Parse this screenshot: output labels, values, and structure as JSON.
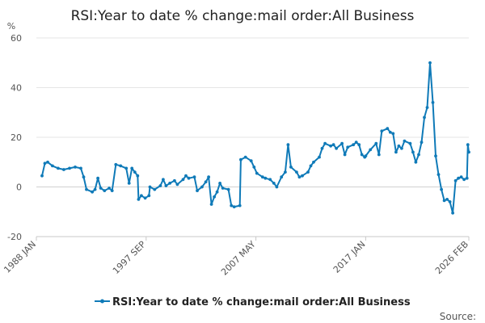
{
  "chart_data": {
    "type": "line",
    "title": "RSI:Year to date % change:mail order:All Business",
    "ylabel": "%",
    "xlabel": "",
    "ylim": [
      -20,
      60
    ],
    "yticks": [
      -20,
      0,
      20,
      40,
      60
    ],
    "xlim": [
      "1988-01",
      "2026-02"
    ],
    "xticks": [
      "1988 JAN",
      "1997 SEP",
      "2007 MAY",
      "2017 JAN",
      "2026 FEB"
    ],
    "grid": true,
    "legend_position": "bottom",
    "source_label": "Source:",
    "series": [
      {
        "name": "RSI:Year to date % change:mail order:All Business",
        "color": "#0f7ab8",
        "points": [
          [
            "1988-07",
            4.5
          ],
          [
            "1988-10",
            9.5
          ],
          [
            "1989-01",
            10.0
          ],
          [
            "1989-06",
            8.5
          ],
          [
            "1989-12",
            7.5
          ],
          [
            "1990-06",
            7.0
          ],
          [
            "1990-12",
            7.5
          ],
          [
            "1991-06",
            8.0
          ],
          [
            "1991-12",
            7.5
          ],
          [
            "1992-03",
            4.0
          ],
          [
            "1992-06",
            -1.0
          ],
          [
            "1992-12",
            -2.0
          ],
          [
            "1993-03",
            -1.0
          ],
          [
            "1993-06",
            3.5
          ],
          [
            "1993-09",
            -0.5
          ],
          [
            "1994-01",
            -1.5
          ],
          [
            "1994-06",
            -0.5
          ],
          [
            "1994-09",
            -1.5
          ],
          [
            "1995-01",
            9.0
          ],
          [
            "1995-06",
            8.5
          ],
          [
            "1995-12",
            7.5
          ],
          [
            "1996-03",
            1.5
          ],
          [
            "1996-06",
            7.5
          ],
          [
            "1996-09",
            6.0
          ],
          [
            "1996-12",
            4.5
          ],
          [
            "1997-01",
            -5.0
          ],
          [
            "1997-04",
            -3.5
          ],
          [
            "1997-08",
            -4.5
          ],
          [
            "1997-12",
            -3.5
          ],
          [
            "1998-01",
            0.0
          ],
          [
            "1998-06",
            -1.0
          ],
          [
            "1998-12",
            0.5
          ],
          [
            "1999-03",
            3.0
          ],
          [
            "1999-06",
            0.5
          ],
          [
            "1999-10",
            1.5
          ],
          [
            "2000-03",
            2.5
          ],
          [
            "2000-06",
            1.0
          ],
          [
            "2000-12",
            3.0
          ],
          [
            "2001-03",
            4.5
          ],
          [
            "2001-06",
            3.5
          ],
          [
            "2001-12",
            4.0
          ],
          [
            "2002-03",
            -1.5
          ],
          [
            "2002-08",
            0.0
          ],
          [
            "2002-12",
            2.0
          ],
          [
            "2003-03",
            4.0
          ],
          [
            "2003-06",
            -7.0
          ],
          [
            "2003-09",
            -4.0
          ],
          [
            "2003-12",
            -2.0
          ],
          [
            "2004-03",
            1.5
          ],
          [
            "2004-06",
            -0.5
          ],
          [
            "2004-12",
            -1.0
          ],
          [
            "2005-03",
            -7.5
          ],
          [
            "2005-06",
            -8.0
          ],
          [
            "2005-12",
            -7.5
          ],
          [
            "2006-01",
            11.0
          ],
          [
            "2006-06",
            12.0
          ],
          [
            "2006-12",
            10.5
          ],
          [
            "2007-03",
            8.0
          ],
          [
            "2007-06",
            5.5
          ],
          [
            "2007-12",
            4.0
          ],
          [
            "2008-03",
            3.5
          ],
          [
            "2008-08",
            3.0
          ],
          [
            "2008-12",
            1.5
          ],
          [
            "2009-03",
            0.0
          ],
          [
            "2009-08",
            4.0
          ],
          [
            "2009-12",
            6.0
          ],
          [
            "2010-03",
            17.0
          ],
          [
            "2010-06",
            8.0
          ],
          [
            "2010-12",
            6.0
          ],
          [
            "2011-03",
            4.0
          ],
          [
            "2011-06",
            4.5
          ],
          [
            "2011-12",
            6.0
          ],
          [
            "2012-03",
            8.5
          ],
          [
            "2012-06",
            10.0
          ],
          [
            "2012-12",
            12.0
          ],
          [
            "2013-03",
            15.5
          ],
          [
            "2013-06",
            17.5
          ],
          [
            "2013-12",
            16.5
          ],
          [
            "2014-03",
            17.0
          ],
          [
            "2014-06",
            15.5
          ],
          [
            "2014-12",
            17.5
          ],
          [
            "2015-03",
            13.0
          ],
          [
            "2015-06",
            16.0
          ],
          [
            "2015-12",
            17.0
          ],
          [
            "2016-03",
            18.0
          ],
          [
            "2016-06",
            17.0
          ],
          [
            "2016-09",
            13.0
          ],
          [
            "2016-12",
            12.0
          ],
          [
            "2017-01",
            12.5
          ],
          [
            "2017-06",
            15.0
          ],
          [
            "2017-12",
            17.5
          ],
          [
            "2018-03",
            13.0
          ],
          [
            "2018-06",
            22.5
          ],
          [
            "2018-12",
            23.5
          ],
          [
            "2019-03",
            22.0
          ],
          [
            "2019-06",
            21.5
          ],
          [
            "2019-09",
            14.0
          ],
          [
            "2019-12",
            16.5
          ],
          [
            "2020-03",
            15.5
          ],
          [
            "2020-06",
            18.5
          ],
          [
            "2020-12",
            17.5
          ],
          [
            "2021-03",
            14.0
          ],
          [
            "2021-06",
            10.0
          ],
          [
            "2021-09",
            13.0
          ],
          [
            "2021-12",
            18.0
          ],
          [
            "2022-03",
            28.0
          ],
          [
            "2022-06",
            32.0
          ],
          [
            "2022-09",
            50.0
          ],
          [
            "2022-12",
            34.0
          ],
          [
            "2023-03",
            12.5
          ],
          [
            "2023-06",
            5.0
          ],
          [
            "2023-09",
            -1.0
          ],
          [
            "2023-12",
            -5.5
          ],
          [
            "2024-03",
            -5.0
          ],
          [
            "2024-06",
            -6.0
          ],
          [
            "2024-09",
            -10.5
          ],
          [
            "2024-12",
            2.5
          ],
          [
            "2025-03",
            3.5
          ],
          [
            "2025-06",
            4.0
          ],
          [
            "2025-09",
            3.0
          ],
          [
            "2025-12",
            3.5
          ],
          [
            "2026-01",
            17.0
          ],
          [
            "2026-02",
            14.0
          ]
        ]
      }
    ]
  }
}
